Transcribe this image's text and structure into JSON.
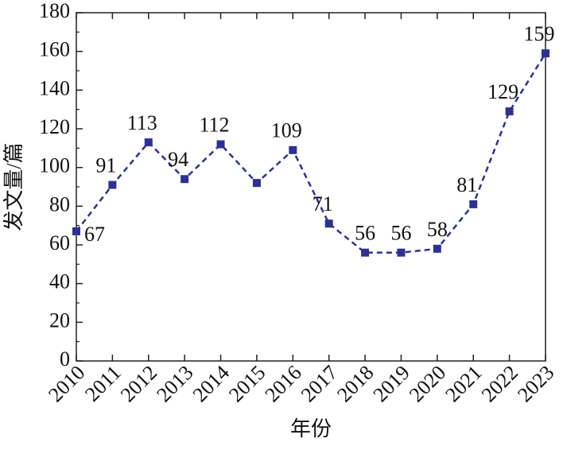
{
  "chart_data": {
    "type": "line",
    "x_label": "年份",
    "y_label": "发文量/篇",
    "categories": [
      "2010",
      "2011",
      "2012",
      "2013",
      "2014",
      "2015",
      "2016",
      "2017",
      "2018",
      "2019",
      "2020",
      "2021",
      "2022",
      "2023"
    ],
    "series": [
      {
        "color": "#2e3192",
        "values": [
          67,
          91,
          113,
          94,
          112,
          92,
          109,
          71,
          56,
          56,
          58,
          81,
          129,
          159
        ],
        "value_labels": [
          "67",
          "91",
          "113",
          "94",
          "112",
          null,
          "109",
          "71",
          "56",
          "56",
          "58",
          "81",
          "129",
          "159"
        ]
      }
    ],
    "ylim": [
      0,
      180
    ],
    "yticks": [
      0,
      20,
      40,
      60,
      80,
      100,
      120,
      140,
      160,
      180
    ],
    "line_style": "dashed",
    "marker": "square"
  }
}
